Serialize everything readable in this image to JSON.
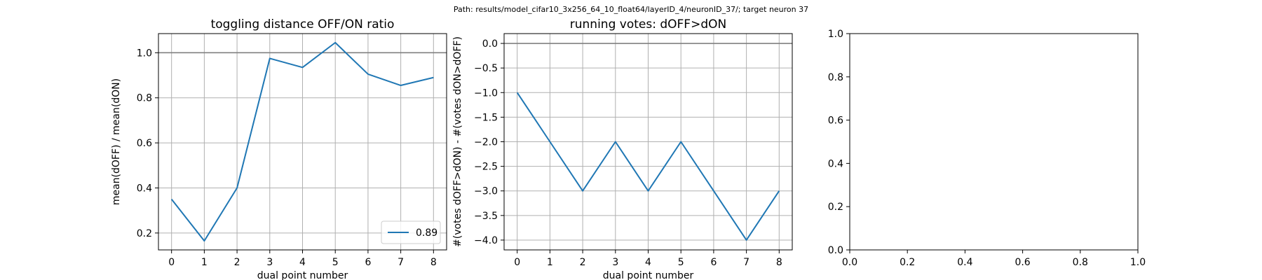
{
  "suptitle": "Path: results/model_cifar10_3x256_64_10_float64/layerID_4/neuronID_37/; target neuron 37",
  "colors": {
    "series": "#1f77b4",
    "grid": "#b0b0b0",
    "refline": "#808080",
    "axes": "#000000"
  },
  "chart_data": [
    {
      "type": "line",
      "title": "toggling distance OFF/ON ratio",
      "xlabel": "dual point number",
      "ylabel": "mean(dOFF) / mean(dON)",
      "xlim": [
        -0.4,
        8.4
      ],
      "ylim": [
        0.125,
        1.085
      ],
      "xticks": [
        0,
        1,
        2,
        3,
        4,
        5,
        6,
        7,
        8
      ],
      "yticks": [
        0.2,
        0.4,
        0.6,
        0.8,
        1.0
      ],
      "ytick_labels": [
        "0.2",
        "0.4",
        "0.6",
        "0.8",
        "1.0"
      ],
      "grid": true,
      "hline": 1.0,
      "legend": {
        "placement": "lower-right",
        "entries": [
          "0.89"
        ]
      },
      "series": [
        {
          "name": "0.89",
          "x": [
            0,
            1,
            2,
            3,
            4,
            5,
            6,
            7,
            8
          ],
          "y": [
            0.35,
            0.165,
            0.4,
            0.975,
            0.935,
            1.045,
            0.905,
            0.855,
            0.89
          ]
        }
      ]
    },
    {
      "type": "line",
      "title": "running votes: dOFF>dON",
      "xlabel": "dual point number",
      "ylabel": "#(votes dOFF>dON) - #(votes dON>dOFF)",
      "xlim": [
        -0.4,
        8.4
      ],
      "ylim": [
        -4.2,
        0.2
      ],
      "xticks": [
        0,
        1,
        2,
        3,
        4,
        5,
        6,
        7,
        8
      ],
      "yticks": [
        0.0,
        -0.5,
        -1.0,
        -1.5,
        -2.0,
        -2.5,
        -3.0,
        -3.5,
        -4.0
      ],
      "ytick_labels": [
        "0.0",
        "−0.5",
        "−1.0",
        "−1.5",
        "−2.0",
        "−2.5",
        "−3.0",
        "−3.5",
        "−4.0"
      ],
      "grid": true,
      "hline": 0.0,
      "series": [
        {
          "x": [
            0,
            1,
            2,
            3,
            4,
            5,
            6,
            7,
            8
          ],
          "y": [
            -1,
            -2,
            -3,
            -2,
            -3,
            -2,
            -3,
            -4,
            -3
          ]
        }
      ]
    },
    {
      "type": "line",
      "title": "",
      "xlabel": "",
      "ylabel": "",
      "xlim": [
        0,
        1
      ],
      "ylim": [
        0,
        1
      ],
      "xticks": [
        0.0,
        0.2,
        0.4,
        0.6,
        0.8,
        1.0
      ],
      "xtick_labels": [
        "0.0",
        "0.2",
        "0.4",
        "0.6",
        "0.8",
        "1.0"
      ],
      "yticks": [
        0.0,
        0.2,
        0.4,
        0.6,
        0.8,
        1.0
      ],
      "ytick_labels": [
        "0.0",
        "0.2",
        "0.4",
        "0.6",
        "0.8",
        "1.0"
      ],
      "grid": false,
      "series": []
    }
  ]
}
